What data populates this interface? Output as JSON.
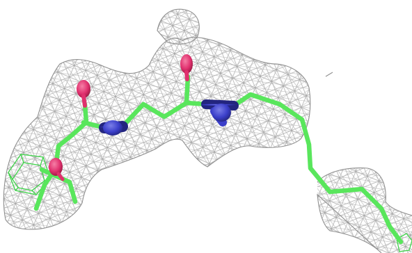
{
  "scene": {
    "kind": "electron-density-map",
    "colors": {
      "background": "#ffffff",
      "mesh": "#9a9a9a",
      "carbon": "#59e65c",
      "nitrogen": "#3b3fc9",
      "oxygen": "#e0306e",
      "ring": "#3fd24a"
    }
  }
}
